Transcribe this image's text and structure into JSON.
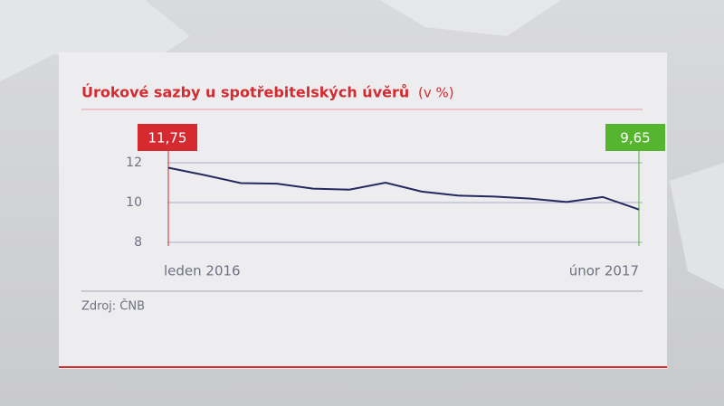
{
  "chart_data": {
    "type": "line",
    "title": "Úrokové sazby u spotřebitelských úvěrů",
    "unit": "(v %)",
    "source": "Zdroj: ČNB",
    "categories": [
      "leden 2016",
      null,
      null,
      null,
      null,
      null,
      null,
      null,
      null,
      null,
      null,
      null,
      null,
      "únor 2017"
    ],
    "values": [
      11.75,
      11.38,
      10.98,
      10.95,
      10.7,
      10.65,
      11.0,
      10.55,
      10.35,
      10.3,
      10.2,
      10.03,
      10.28,
      9.65
    ],
    "value_labels": [
      "11,75",
      null,
      null,
      null,
      null,
      null,
      null,
      null,
      null,
      null,
      null,
      null,
      null,
      "9,65"
    ],
    "value_label_colors": [
      "#d42a30",
      null,
      null,
      null,
      null,
      null,
      null,
      null,
      null,
      null,
      null,
      null,
      null,
      "#55b52f"
    ],
    "color": "#242a5e",
    "ylim": [
      8,
      12
    ],
    "yticks": [
      8,
      10,
      12
    ],
    "grid": true
  }
}
